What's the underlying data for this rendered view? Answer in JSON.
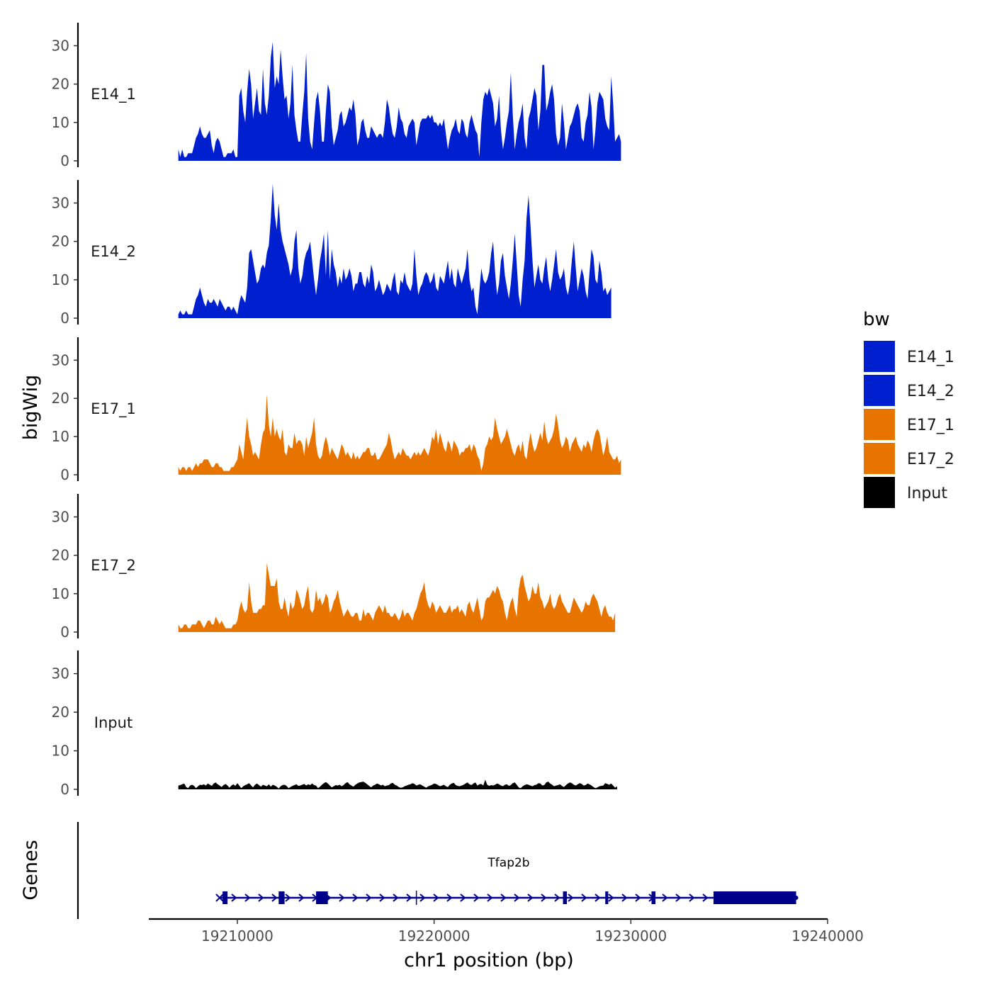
{
  "chart_data": {
    "type": "area",
    "ylabel": "bigWig",
    "xlabel": "chr1 position (bp)",
    "xlim": [
      19205500,
      19240000
    ],
    "ylim": [
      0,
      36
    ],
    "yticks": [
      0,
      10,
      20,
      30
    ],
    "xticks": [
      19210000,
      19220000,
      19230000,
      19240000
    ],
    "xtick_labels": [
      "19210000",
      "19220000",
      "19230000",
      "19240000"
    ],
    "x_start": 19207000,
    "x_step": 100,
    "legend": {
      "title": "bw",
      "position": "right",
      "entries": [
        {
          "name": "E14_1",
          "color": "#0020D0"
        },
        {
          "name": "E14_2",
          "color": "#0020D0"
        },
        {
          "name": "E17_1",
          "color": "#E87400"
        },
        {
          "name": "E17_2",
          "color": "#E87400"
        },
        {
          "name": "Input",
          "color": "#000000"
        }
      ]
    },
    "series": [
      {
        "name": "E14_1",
        "color": "#0020D0",
        "values": [
          3,
          1,
          3,
          1,
          1,
          2,
          2,
          2,
          4,
          6,
          7,
          9,
          7,
          6,
          6,
          7,
          8,
          4,
          2,
          5,
          6,
          5,
          3,
          1,
          1,
          2,
          2,
          2,
          3,
          1,
          1,
          17,
          19,
          13,
          10,
          18,
          24,
          20,
          11,
          15,
          19,
          13,
          12,
          24,
          15,
          12,
          17,
          27,
          31,
          19,
          22,
          20,
          29,
          22,
          16,
          17,
          11,
          15,
          25,
          12,
          8,
          5,
          5,
          12,
          18,
          28,
          11,
          5,
          3,
          10,
          16,
          18,
          13,
          5,
          5,
          13,
          20,
          18,
          9,
          4,
          6,
          8,
          12,
          13,
          9,
          10,
          12,
          14,
          13,
          16,
          12,
          4,
          6,
          10,
          11,
          8,
          6,
          6,
          9,
          8,
          7,
          6,
          7,
          7,
          6,
          10,
          16,
          14,
          10,
          7,
          6,
          9,
          14,
          11,
          10,
          7,
          6,
          9,
          10,
          11,
          10,
          4,
          7,
          10,
          11,
          11,
          11,
          12,
          11,
          12,
          10,
          10,
          9,
          10,
          9,
          11,
          7,
          3,
          6,
          8,
          9,
          11,
          8,
          7,
          11,
          10,
          7,
          6,
          10,
          12,
          10,
          8,
          7,
          1,
          10,
          16,
          18,
          17,
          19,
          17,
          15,
          9,
          11,
          17,
          8,
          3,
          6,
          10,
          13,
          23,
          12,
          3,
          7,
          10,
          12,
          15,
          6,
          3,
          11,
          13,
          16,
          19,
          17,
          8,
          13,
          25,
          25,
          13,
          15,
          18,
          20,
          16,
          7,
          4,
          6,
          15,
          10,
          3,
          6,
          9,
          10,
          12,
          14,
          15,
          13,
          6,
          5,
          10,
          12,
          18,
          14,
          3,
          8,
          15,
          18,
          17,
          16,
          11,
          9,
          8,
          22,
          15,
          5,
          6,
          7,
          5
        ]
      },
      {
        "name": "E14_2",
        "color": "#0020D0",
        "values": [
          1,
          2,
          1,
          1,
          2,
          1,
          1,
          1,
          3,
          5,
          6,
          8,
          6,
          4,
          3,
          5,
          4,
          4,
          5,
          4,
          3,
          5,
          4,
          3,
          2,
          3,
          3,
          2,
          3,
          2,
          1,
          4,
          6,
          5,
          4,
          8,
          17,
          18,
          15,
          12,
          9,
          10,
          13,
          14,
          13,
          17,
          19,
          26,
          35,
          27,
          23,
          30,
          23,
          20,
          18,
          16,
          14,
          11,
          13,
          20,
          23,
          13,
          9,
          11,
          15,
          17,
          18,
          20,
          15,
          10,
          6,
          10,
          15,
          18,
          22,
          11,
          23,
          10,
          18,
          14,
          12,
          8,
          11,
          9,
          13,
          10,
          11,
          13,
          11,
          7,
          9,
          9,
          12,
          12,
          9,
          8,
          11,
          9,
          14,
          12,
          7,
          8,
          10,
          8,
          6,
          7,
          9,
          8,
          7,
          10,
          12,
          7,
          6,
          10,
          9,
          12,
          9,
          8,
          7,
          9,
          18,
          11,
          6,
          8,
          9,
          11,
          12,
          11,
          9,
          10,
          12,
          8,
          7,
          11,
          10,
          9,
          12,
          15,
          10,
          13,
          9,
          8,
          13,
          11,
          9,
          11,
          13,
          18,
          10,
          7,
          8,
          3,
          1,
          7,
          13,
          10,
          9,
          10,
          12,
          17,
          20,
          12,
          6,
          9,
          15,
          17,
          11,
          8,
          5,
          9,
          15,
          22,
          14,
          6,
          3,
          10,
          15,
          26,
          32,
          24,
          15,
          8,
          11,
          14,
          10,
          9,
          13,
          16,
          10,
          7,
          10,
          14,
          18,
          12,
          10,
          11,
          13,
          8,
          6,
          9,
          15,
          20,
          13,
          7,
          10,
          13,
          11,
          7,
          5,
          12,
          18,
          16,
          10,
          9,
          15,
          12,
          7,
          8,
          6,
          7,
          8
        ]
      },
      {
        "name": "E17_1",
        "color": "#E87400",
        "values": [
          2,
          1,
          2,
          2,
          1,
          2,
          2,
          1,
          2,
          3,
          2,
          3,
          3,
          4,
          4,
          4,
          3,
          2,
          2,
          3,
          3,
          2,
          2,
          1,
          1,
          1,
          1,
          2,
          2,
          3,
          4,
          8,
          6,
          4,
          10,
          15,
          10,
          8,
          5,
          6,
          5,
          4,
          8,
          11,
          12,
          21,
          13,
          10,
          15,
          10,
          12,
          10,
          9,
          12,
          6,
          5,
          8,
          7,
          7,
          11,
          8,
          9,
          9,
          8,
          5,
          10,
          7,
          9,
          11,
          15,
          8,
          5,
          4,
          5,
          8,
          10,
          8,
          5,
          7,
          6,
          5,
          4,
          6,
          8,
          7,
          5,
          6,
          5,
          4,
          6,
          4,
          5,
          4,
          5,
          6,
          6,
          7,
          7,
          5,
          5,
          6,
          4,
          4,
          5,
          6,
          7,
          8,
          11,
          9,
          6,
          4,
          5,
          6,
          5,
          7,
          6,
          5,
          5,
          4,
          5,
          6,
          5,
          6,
          5,
          6,
          7,
          6,
          5,
          7,
          10,
          9,
          12,
          8,
          11,
          9,
          7,
          6,
          9,
          8,
          6,
          9,
          8,
          7,
          5,
          6,
          6,
          7,
          7,
          8,
          6,
          8,
          7,
          5,
          4,
          1,
          3,
          7,
          8,
          10,
          9,
          10,
          15,
          12,
          10,
          8,
          9,
          10,
          12,
          10,
          8,
          6,
          5,
          7,
          8,
          6,
          9,
          5,
          4,
          8,
          11,
          8,
          6,
          7,
          9,
          11,
          9,
          14,
          10,
          8,
          9,
          10,
          12,
          16,
          13,
          9,
          7,
          8,
          10,
          9,
          6,
          8,
          9,
          10,
          8,
          7,
          6,
          8,
          7,
          9,
          8,
          6,
          9,
          11,
          12,
          11,
          8,
          5,
          7,
          10,
          6,
          5,
          4,
          4,
          5,
          3,
          4
        ]
      },
      {
        "name": "E17_2",
        "color": "#E87400",
        "values": [
          2,
          1,
          1,
          2,
          2,
          1,
          1,
          2,
          2,
          2,
          3,
          3,
          2,
          1,
          2,
          3,
          3,
          2,
          2,
          4,
          3,
          2,
          3,
          2,
          1,
          1,
          1,
          1,
          2,
          2,
          3,
          6,
          8,
          6,
          5,
          6,
          13,
          8,
          5,
          5,
          5,
          6,
          6,
          7,
          7,
          18,
          15,
          12,
          12,
          12,
          14,
          8,
          6,
          6,
          9,
          6,
          4,
          8,
          6,
          7,
          11,
          10,
          8,
          6,
          7,
          10,
          12,
          6,
          5,
          6,
          11,
          8,
          9,
          7,
          8,
          10,
          9,
          5,
          6,
          8,
          9,
          11,
          8,
          6,
          4,
          5,
          6,
          5,
          4,
          4,
          5,
          5,
          3,
          3,
          6,
          4,
          5,
          5,
          4,
          3,
          5,
          6,
          7,
          6,
          5,
          7,
          5,
          5,
          4,
          4,
          5,
          4,
          3,
          4,
          6,
          4,
          5,
          5,
          4,
          3,
          5,
          6,
          8,
          10,
          11,
          13,
          9,
          7,
          6,
          8,
          7,
          5,
          6,
          7,
          6,
          5,
          5,
          6,
          7,
          5,
          6,
          6,
          7,
          5,
          6,
          5,
          4,
          7,
          8,
          6,
          5,
          7,
          9,
          6,
          3,
          4,
          8,
          9,
          9,
          10,
          11,
          10,
          12,
          11,
          9,
          8,
          5,
          3,
          6,
          8,
          9,
          6,
          4,
          11,
          14,
          15,
          12,
          10,
          8,
          9,
          12,
          10,
          10,
          13,
          9,
          8,
          6,
          7,
          8,
          10,
          7,
          6,
          7,
          9,
          10,
          8,
          7,
          6,
          5,
          5,
          7,
          9,
          8,
          7,
          6,
          5,
          6,
          8,
          7,
          7,
          9,
          10,
          9,
          8,
          6,
          4,
          6,
          7,
          5,
          4,
          4,
          3,
          5
        ]
      },
      {
        "name": "Input",
        "color": "#000000",
        "values": [
          1.0,
          1.1,
          1.3,
          1.5,
          0.6,
          0.3,
          1.0,
          1.2,
          0.9,
          0.3,
          0.8,
          1.2,
          1.1,
          1.3,
          1.0,
          1.5,
          1.2,
          0.9,
          1.5,
          1.8,
          1.3,
          1.0,
          0.6,
          1.1,
          1.4,
          1.0,
          0.4,
          1.0,
          1.3,
          0.9,
          1.6,
          1.0,
          0.3,
          0.8,
          1.1,
          1.3,
          1.6,
          1.0,
          0.5,
          1.2,
          1.5,
          1.1,
          0.7,
          1.2,
          1.0,
          0.8,
          1.3,
          0.7,
          1.2,
          1.0,
          0.7,
          0.2,
          0.8,
          1.1,
          1.2,
          0.9,
          0.3,
          0.6,
          0.9,
          1.1,
          1.3,
          0.9,
          1.0,
          1.2,
          1.4,
          1.0,
          1.3,
          1.1,
          1.5,
          1.1,
          1.0,
          0.3,
          0.7,
          1.2,
          1.6,
          1.9,
          1.5,
          1.0,
          0.5,
          0.8,
          1.1,
          1.0,
          1.2,
          0.8,
          1.1,
          1.6,
          1.9,
          1.3,
          1.0,
          0.7,
          1.2,
          1.5,
          1.8,
          1.9,
          2.0,
          1.7,
          1.3,
          0.9,
          0.5,
          1.0,
          1.2,
          1.5,
          1.3,
          1.0,
          1.2,
          0.8,
          1.0,
          1.1,
          1.5,
          1.7,
          1.2,
          1.0,
          0.6,
          0.4,
          0.5,
          0.8,
          1.0,
          1.2,
          1.3,
          1.6,
          1.4,
          1.0,
          1.2,
          1.3,
          1.0,
          0.7,
          0.4,
          0.8,
          1.0,
          1.2,
          1.5,
          1.4,
          1.1,
          0.8,
          1.0,
          1.2,
          0.8,
          0.6,
          1.2,
          1.5,
          1.7,
          1.1,
          0.9,
          0.8,
          1.0,
          1.2,
          1.5,
          1.8,
          1.3,
          1.1,
          1.5,
          1.8,
          1.0,
          1.3,
          1.4,
          1.0,
          2.5,
          1.2,
          0.9,
          1.1,
          1.0,
          1.2,
          1.5,
          1.3,
          1.0,
          0.8,
          1.2,
          1.3,
          0.9,
          1.1,
          1.6,
          1.8,
          1.2,
          0.5,
          0.3,
          0.8,
          1.1,
          1.3,
          1.2,
          1.0,
          0.8,
          1.1,
          1.2,
          1.6,
          1.5,
          1.0,
          1.1,
          1.8,
          2.0,
          1.5,
          1.2,
          0.8,
          1.0,
          1.1,
          1.3,
          0.9,
          0.6,
          1.1,
          1.5,
          1.8,
          1.6,
          1.2,
          1.0,
          1.3,
          1.6,
          1.4,
          1.0,
          1.1,
          1.5,
          1.3,
          1.0,
          0.6,
          0.3,
          0.5,
          0.8,
          0.9,
          1.0,
          1.6,
          1.4,
          1.2,
          1.5,
          1.0,
          0.4,
          0.8
        ]
      }
    ],
    "genes": {
      "title": "Genes",
      "label": "Tfap2b",
      "strand": "+",
      "start": 19209100,
      "end": 19238400,
      "exons": [
        {
          "start": 19209250,
          "end": 19209500
        },
        {
          "start": 19212100,
          "end": 19212400
        },
        {
          "start": 19214000,
          "end": 19214600
        },
        {
          "start": 19226550,
          "end": 19226750
        },
        {
          "start": 19228700,
          "end": 19228850
        },
        {
          "start": 19231050,
          "end": 19231250
        },
        {
          "start": 19234200,
          "end": 19238400
        }
      ]
    }
  }
}
